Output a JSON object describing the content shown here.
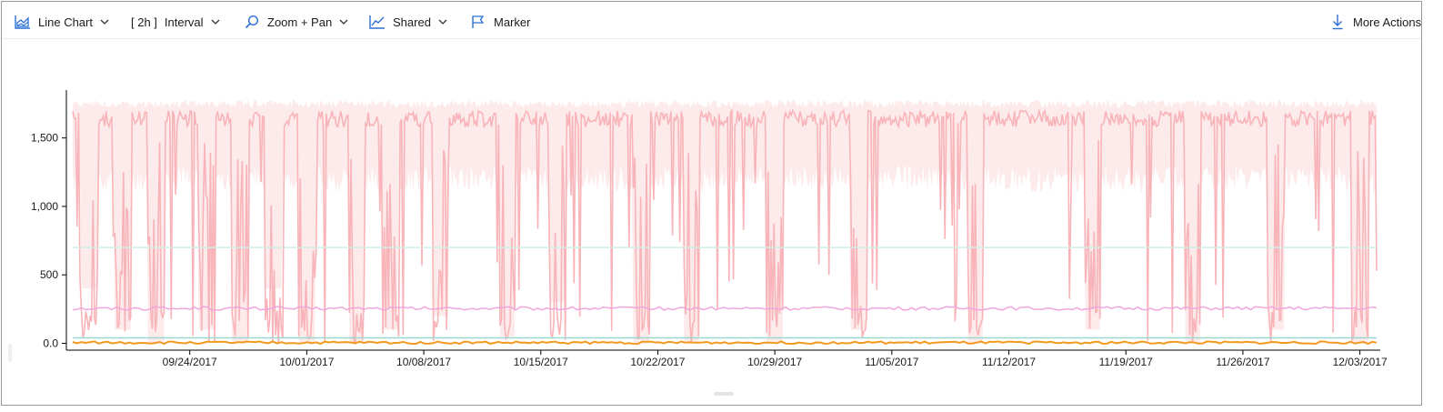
{
  "toolbar": {
    "chart_type_label": "Line Chart",
    "interval_value": "[ 2h ]",
    "interval_label": "Interval",
    "zoom_label": "Zoom + Pan",
    "shared_label": "Shared",
    "marker_label": "Marker",
    "more_actions_label": "More Actions"
  },
  "icons": {
    "chart_type": "area-chart-icon",
    "zoom": "magnifier-icon",
    "shared": "line-trend-icon",
    "marker": "flag-icon",
    "more_actions": "download-arrow-icon"
  },
  "colors": {
    "accent": "#2b6fd6",
    "axis": "#000000",
    "series_pink_line": "#f8b4b8",
    "series_pink_band": "#fde3e4",
    "series_magenta": "#f0a6dc",
    "series_teal_upper": "#cfeee8",
    "series_teal_lower": "#9ad8cf",
    "series_orange": "#f29a1f"
  },
  "chart_data": {
    "type": "line",
    "title": "",
    "xlabel": "",
    "ylabel": "",
    "ylim": [
      -50,
      1850
    ],
    "xlim_days": [
      "2017-09-17",
      "2017-12-05"
    ],
    "yticks": [
      0,
      500,
      1000,
      1500
    ],
    "ytick_labels": [
      "0.0",
      "500",
      "1,000",
      "1,500"
    ],
    "xticks": [
      "09/24/2017",
      "10/01/2017",
      "10/08/2017",
      "10/15/2017",
      "10/22/2017",
      "10/29/2017",
      "11/05/2017",
      "11/12/2017",
      "11/19/2017",
      "11/26/2017",
      "12/03/2017"
    ],
    "grid": false,
    "legend": "none",
    "series": [
      {
        "color": "#f8b4b8",
        "kind": "volatile line with min/max band",
        "typical_high": 1700,
        "band_low": 1100,
        "band_high": 1780,
        "typical_low": 0,
        "values_by_day": [
          1700,
          600,
          1650,
          300,
          1550,
          100,
          1650,
          1700,
          300,
          1700,
          200,
          1650,
          600,
          1700,
          150,
          1700,
          1650,
          200,
          1700,
          300,
          1650,
          1700,
          400,
          1700,
          1650,
          1700,
          250,
          1700,
          1600,
          500,
          1650,
          1700,
          1700,
          1650,
          200,
          1700,
          1650,
          100,
          1700,
          1600,
          1700,
          1650,
          200,
          1700,
          1650,
          1700,
          1650,
          300,
          1700,
          1650,
          1700,
          1700,
          1650,
          1700,
          200,
          1650,
          1700,
          1700,
          1650,
          1700,
          1650,
          300,
          1700,
          1650,
          1700,
          1650,
          1700,
          200,
          1700,
          1650,
          1700,
          1650,
          300,
          1700,
          1650,
          1700,
          1650,
          200,
          1400
        ]
      },
      {
        "color": "#cfeee8",
        "kind": "flat",
        "value": 700
      },
      {
        "color": "#f0a6dc",
        "kind": "flat noisy",
        "value": 255
      },
      {
        "color": "#9ad8cf",
        "kind": "flat",
        "value": 40
      },
      {
        "color": "#f29a1f",
        "kind": "flat noisy",
        "value": 5
      }
    ]
  }
}
